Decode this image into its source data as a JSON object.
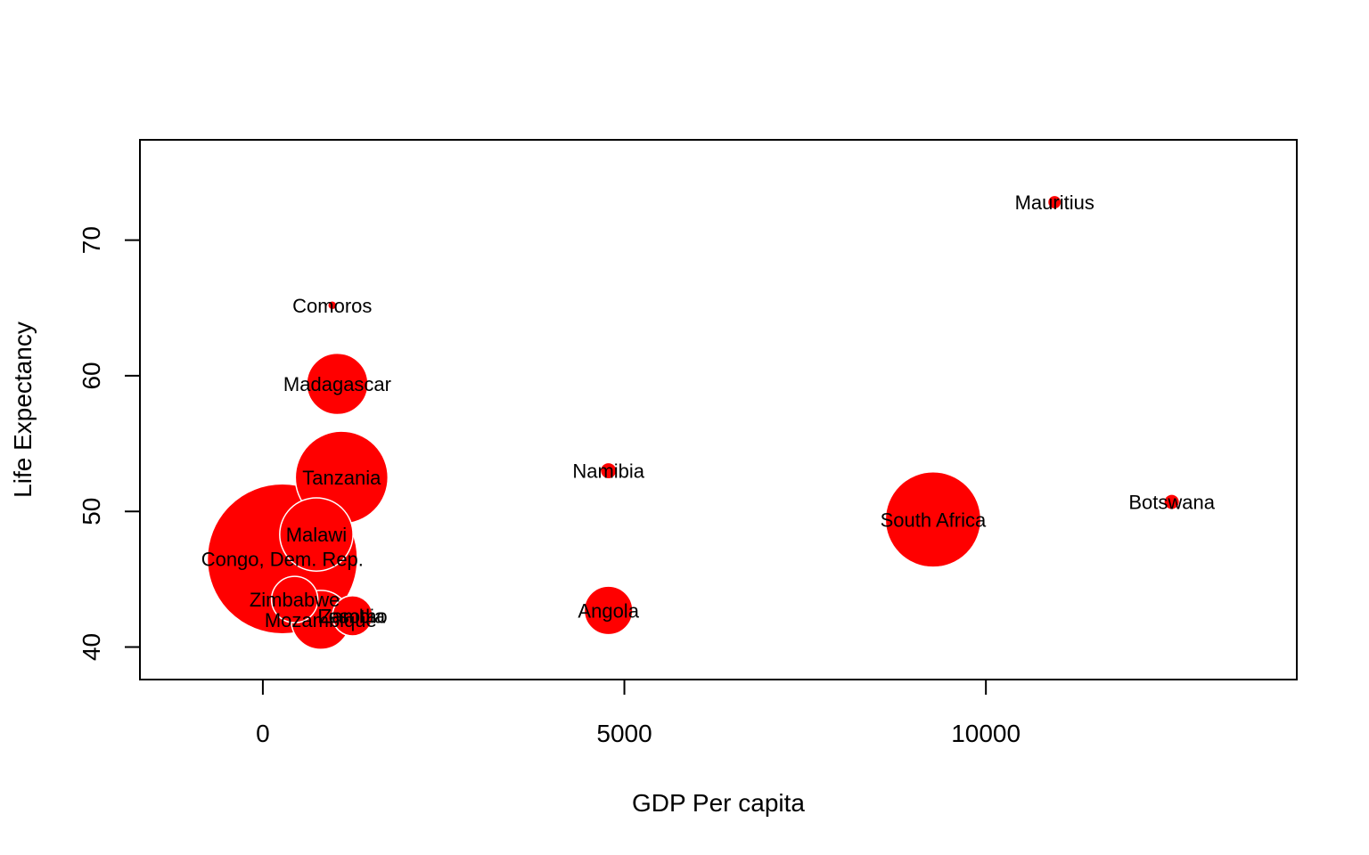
{
  "chart_data": {
    "type": "scatter",
    "title": "",
    "xlabel": "GDP Per capita",
    "ylabel": "Life Expectancy",
    "xlim": [
      -1700,
      14300
    ],
    "ylim": [
      37.6,
      77.4
    ],
    "xticks": [
      0,
      5000,
      10000
    ],
    "yticks": [
      40,
      50,
      60,
      70
    ],
    "grid": false,
    "legend": "none",
    "point_color": "#ff0000",
    "point_border": "#ffffff",
    "label_color": "#000000",
    "size_encoding": "bubble area (relative units)",
    "points": [
      {
        "label": "Congo, Dem. Rep.",
        "x": 270,
        "y": 46.5,
        "size": 4200
      },
      {
        "label": "Malawi",
        "x": 740,
        "y": 48.3,
        "size": 1000
      },
      {
        "label": "Tanzania",
        "x": 1090,
        "y": 52.5,
        "size": 1600
      },
      {
        "label": "Madagascar",
        "x": 1030,
        "y": 59.4,
        "size": 700
      },
      {
        "label": "Comoros",
        "x": 960,
        "y": 65.2,
        "size": 15
      },
      {
        "label": "Zimbabwe",
        "x": 440,
        "y": 43.5,
        "size": 400
      },
      {
        "label": "Mozambique",
        "x": 800,
        "y": 42.0,
        "size": 650
      },
      {
        "label": "Lesotho",
        "x": 1240,
        "y": 42.3,
        "size": 300
      },
      {
        "label": "Zambia",
        "x": 1240,
        "y": 42.3,
        "size": 300
      },
      {
        "label": "Angola",
        "x": 4780,
        "y": 42.7,
        "size": 440
      },
      {
        "label": "Namibia",
        "x": 4780,
        "y": 53.0,
        "size": 50
      },
      {
        "label": "South Africa",
        "x": 9270,
        "y": 49.4,
        "size": 1700
      },
      {
        "label": "Mauritius",
        "x": 10950,
        "y": 72.8,
        "size": 35
      },
      {
        "label": "Botswana",
        "x": 12570,
        "y": 50.7,
        "size": 45
      }
    ]
  }
}
